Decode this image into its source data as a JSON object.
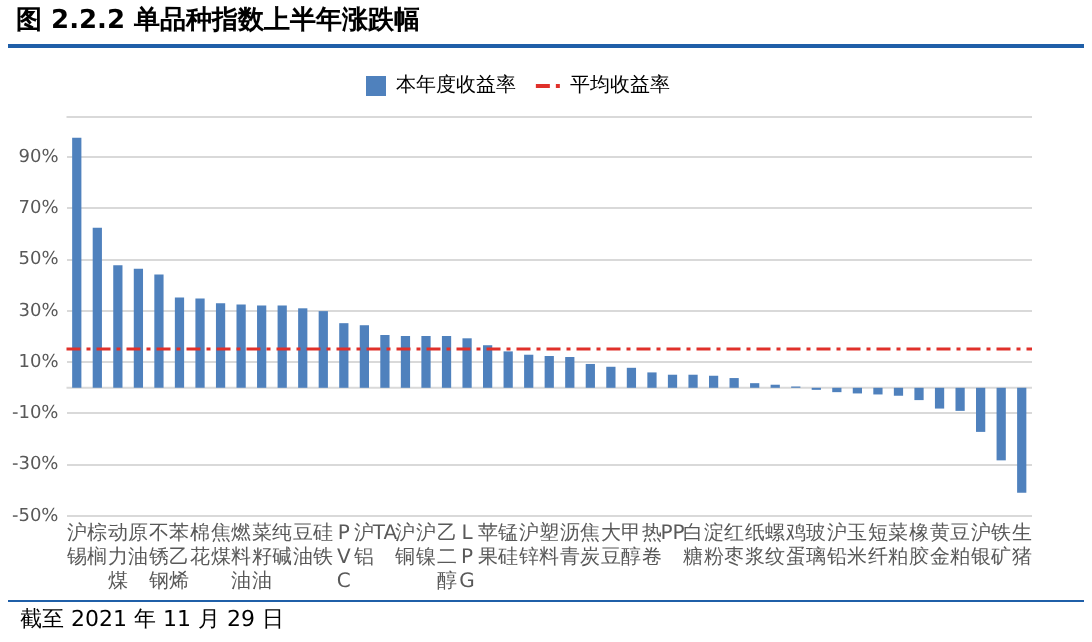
{
  "chart_data": {
    "type": "bar",
    "title": "图 2.2.2 单品种指数上半年涨跌幅",
    "annotations": [
      "截至 2021 年 11 月 29 日"
    ],
    "categories": [
      "沪锡",
      "棕榈",
      "动力煤",
      "原油",
      "不锈钢",
      "苯乙烯",
      "棉花",
      "焦煤",
      "燃料油",
      "菜籽油",
      "纯碱",
      "豆油",
      "硅铁",
      "PVC",
      "沪铝",
      "TA",
      "沪铜",
      "沪镍",
      "乙二醇",
      "LPG",
      "苹果",
      "锰硅",
      "沪锌",
      "塑料",
      "沥青",
      "焦炭",
      "大豆",
      "甲醇",
      "热卷",
      "PP",
      "白糖",
      "淀粉",
      "红枣",
      "纸浆",
      "螺纹",
      "鸡蛋",
      "玻璃",
      "沪铅",
      "玉米",
      "短纤",
      "菜粕",
      "橡胶",
      "黄金",
      "豆粕",
      "沪银",
      "铁矿",
      "生猪"
    ],
    "series": [
      {
        "name": "本年度收益率",
        "color": "#4f81bd",
        "values": [
          97.5,
          62.4,
          47.8,
          46.4,
          44.2,
          35.2,
          34.8,
          33.0,
          32.5,
          32.1,
          32.1,
          31.0,
          29.9,
          25.2,
          24.4,
          20.6,
          20.2,
          20.2,
          20.2,
          19.3,
          16.6,
          14.2,
          12.9,
          12.4,
          12.0,
          9.3,
          8.2,
          7.8,
          6.0,
          5.1,
          5.1,
          4.7,
          3.8,
          1.8,
          1.2,
          0.5,
          -0.8,
          -1.7,
          -2.2,
          -2.6,
          -3.1,
          -4.8,
          -8.1,
          -9.0,
          -17.2,
          -28.3,
          -40.9
        ]
      }
    ],
    "ref_lines": [
      {
        "axis": "y",
        "value": 15.1,
        "label": "平均收益率",
        "color": "#e0302a",
        "line_style": "dashed"
      }
    ],
    "ylim": [
      -50,
      106
    ],
    "yticks": [
      {
        "value": -50,
        "label": "-50%"
      },
      {
        "value": -30,
        "label": "-30%"
      },
      {
        "value": -10,
        "label": "-10%"
      },
      {
        "value": 10,
        "label": "10%"
      },
      {
        "value": 30,
        "label": "30%"
      },
      {
        "value": 50,
        "label": "50%"
      },
      {
        "value": 70,
        "label": "70%"
      },
      {
        "value": 90,
        "label": "90%"
      }
    ],
    "grid": "y",
    "legend": "top"
  }
}
